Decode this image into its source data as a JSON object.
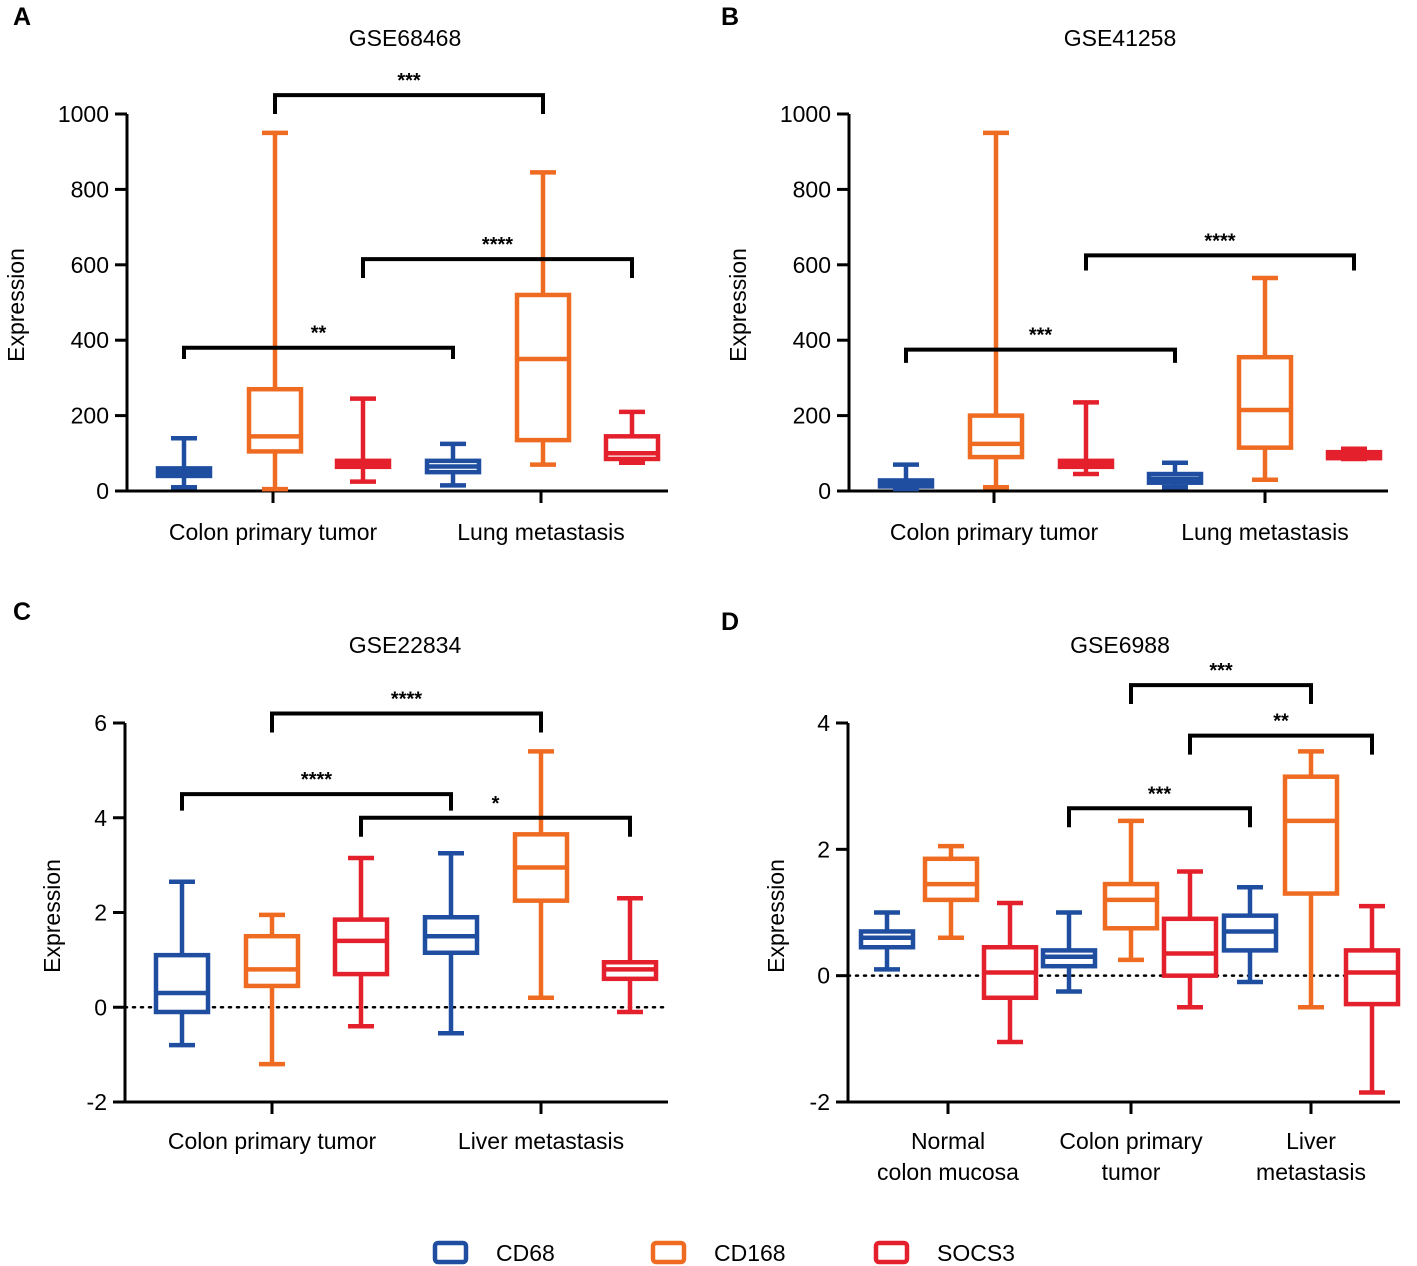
{
  "colors": {
    "CD68": "#1f4ea1",
    "CD168": "#ef6b22",
    "SOCS3": "#e3202c",
    "axis": "#000000"
  },
  "legend": [
    {
      "name": "CD68",
      "color": "#1f4ea1"
    },
    {
      "name": "CD168",
      "color": "#ef6b22"
    },
    {
      "name": "SOCS3",
      "color": "#e3202c"
    }
  ],
  "chart_data": [
    {
      "panel": "A",
      "type": "box",
      "title": "GSE68468",
      "ylabel": "Expression",
      "ylim": [
        0,
        1000
      ],
      "yticks": [
        0,
        200,
        400,
        600,
        800,
        1000
      ],
      "zero_line": false,
      "groups": [
        {
          "label": "Colon primary tumor",
          "boxes": [
            {
              "series": "CD68",
              "min": 10,
              "q1": 40,
              "median": 50,
              "q3": 60,
              "max": 140
            },
            {
              "series": "CD168",
              "min": 5,
              "q1": 105,
              "median": 145,
              "q3": 270,
              "max": 950
            },
            {
              "series": "SOCS3",
              "min": 25,
              "q1": 65,
              "median": 72,
              "q3": 80,
              "max": 245
            }
          ]
        },
        {
          "label": "Lung metastasis",
          "boxes": [
            {
              "series": "CD68",
              "min": 15,
              "q1": 50,
              "median": 65,
              "q3": 80,
              "max": 125
            },
            {
              "series": "CD168",
              "min": 70,
              "q1": 135,
              "median": 350,
              "q3": 520,
              "max": 845
            },
            {
              "series": "SOCS3",
              "min": 75,
              "q1": 85,
              "median": 100,
              "q3": 145,
              "max": 210
            }
          ]
        }
      ],
      "significance": [
        {
          "label": "**",
          "from": [
            0,
            0
          ],
          "to": [
            1,
            0
          ],
          "y": 380,
          "tip": 350
        },
        {
          "label": "***",
          "from": [
            0,
            1
          ],
          "to": [
            1,
            1
          ],
          "y": 1050,
          "tip": 1000
        },
        {
          "label": "****",
          "from": [
            0,
            2
          ],
          "to": [
            1,
            2
          ],
          "y": 615,
          "tip": 565
        }
      ]
    },
    {
      "panel": "B",
      "type": "box",
      "title": "GSE41258",
      "ylabel": "Expression",
      "ylim": [
        0,
        1000
      ],
      "yticks": [
        0,
        200,
        400,
        600,
        800,
        1000
      ],
      "zero_line": false,
      "groups": [
        {
          "label": "Colon primary tumor",
          "boxes": [
            {
              "series": "CD68",
              "min": 5,
              "q1": 15,
              "median": 22,
              "q3": 28,
              "max": 70
            },
            {
              "series": "CD168",
              "min": 10,
              "q1": 90,
              "median": 125,
              "q3": 200,
              "max": 950
            },
            {
              "series": "SOCS3",
              "min": 45,
              "q1": 70,
              "median": 75,
              "q3": 80,
              "max": 235
            }
          ]
        },
        {
          "label": "Lung metastasis",
          "boxes": [
            {
              "series": "CD68",
              "min": 10,
              "q1": 22,
              "median": 32,
              "q3": 45,
              "max": 75
            },
            {
              "series": "CD168",
              "min": 30,
              "q1": 115,
              "median": 215,
              "q3": 355,
              "max": 565
            },
            {
              "series": "SOCS3",
              "min": 85,
              "q1": 88,
              "median": 95,
              "q3": 103,
              "max": 112
            }
          ]
        }
      ],
      "significance": [
        {
          "label": "***",
          "from": [
            0,
            0
          ],
          "to": [
            1,
            0
          ],
          "y": 375,
          "tip": 340
        },
        {
          "label": "****",
          "from": [
            0,
            2
          ],
          "to": [
            1,
            2
          ],
          "y": 625,
          "tip": 585
        }
      ]
    },
    {
      "panel": "C",
      "type": "box",
      "title": "GSE22834",
      "ylabel": "Expression",
      "ylim": [
        -2,
        6
      ],
      "yticks": [
        -2,
        0,
        2,
        4,
        6
      ],
      "zero_line": true,
      "groups": [
        {
          "label": "Colon primary tumor",
          "boxes": [
            {
              "series": "CD68",
              "min": -0.8,
              "q1": -0.1,
              "median": 0.3,
              "q3": 1.1,
              "max": 2.65
            },
            {
              "series": "CD168",
              "min": -1.2,
              "q1": 0.45,
              "median": 0.8,
              "q3": 1.5,
              "max": 1.95
            },
            {
              "series": "SOCS3",
              "min": -0.4,
              "q1": 0.7,
              "median": 1.4,
              "q3": 1.85,
              "max": 3.15
            }
          ]
        },
        {
          "label": "Liver metastasis",
          "boxes": [
            {
              "series": "CD68",
              "min": -0.55,
              "q1": 1.15,
              "median": 1.5,
              "q3": 1.9,
              "max": 3.25
            },
            {
              "series": "CD168",
              "min": 0.2,
              "q1": 2.25,
              "median": 2.95,
              "q3": 3.65,
              "max": 5.4
            },
            {
              "series": "SOCS3",
              "min": -0.1,
              "q1": 0.6,
              "median": 0.8,
              "q3": 0.95,
              "max": 2.3
            }
          ]
        }
      ],
      "significance": [
        {
          "label": "****",
          "from": [
            0,
            0
          ],
          "to": [
            1,
            0
          ],
          "y": 4.5,
          "tip": 4.15
        },
        {
          "label": "****",
          "from": [
            0,
            1
          ],
          "to": [
            1,
            1
          ],
          "y": 6.2,
          "tip": 5.8
        },
        {
          "label": "*",
          "from": [
            0,
            2
          ],
          "to": [
            1,
            2
          ],
          "y": 4.0,
          "tip": 3.6
        }
      ]
    },
    {
      "panel": "D",
      "type": "box",
      "title": "GSE6988",
      "ylabel": "Expression",
      "ylim": [
        -2,
        4
      ],
      "yticks": [
        -2,
        0,
        2,
        4
      ],
      "zero_line": true,
      "groups": [
        {
          "label": "Normal\ncolon mucosa",
          "boxes": [
            {
              "series": "CD68",
              "min": 0.1,
              "q1": 0.45,
              "median": 0.6,
              "q3": 0.7,
              "max": 1.0
            },
            {
              "series": "CD168",
              "min": 0.6,
              "q1": 1.2,
              "median": 1.45,
              "q3": 1.85,
              "max": 2.05
            },
            {
              "series": "SOCS3",
              "min": -1.05,
              "q1": -0.35,
              "median": 0.05,
              "q3": 0.45,
              "max": 1.15
            }
          ]
        },
        {
          "label": "Colon primary\ntumor",
          "boxes": [
            {
              "series": "CD68",
              "min": -0.25,
              "q1": 0.15,
              "median": 0.3,
              "q3": 0.4,
              "max": 1.0
            },
            {
              "series": "CD168",
              "min": 0.25,
              "q1": 0.75,
              "median": 1.2,
              "q3": 1.45,
              "max": 2.45
            },
            {
              "series": "SOCS3",
              "min": -0.5,
              "q1": 0.0,
              "median": 0.35,
              "q3": 0.9,
              "max": 1.65
            }
          ]
        },
        {
          "label": "Liver\nmetastasis",
          "boxes": [
            {
              "series": "CD68",
              "min": -0.1,
              "q1": 0.4,
              "median": 0.7,
              "q3": 0.95,
              "max": 1.4
            },
            {
              "series": "CD168",
              "min": -0.5,
              "q1": 1.3,
              "median": 2.45,
              "q3": 3.15,
              "max": 3.55
            },
            {
              "series": "SOCS3",
              "min": -1.85,
              "q1": -0.45,
              "median": 0.05,
              "q3": 0.4,
              "max": 1.1
            }
          ]
        }
      ],
      "significance": [
        {
          "label": "***",
          "from": [
            1,
            0
          ],
          "to": [
            2,
            0
          ],
          "y": 2.65,
          "tip": 2.35
        },
        {
          "label": "***",
          "from": [
            1,
            1
          ],
          "to": [
            2,
            1
          ],
          "y": 4.6,
          "tip": 4.3
        },
        {
          "label": "**",
          "from": [
            1,
            2
          ],
          "to": [
            2,
            2
          ],
          "y": 3.8,
          "tip": 3.5
        }
      ]
    }
  ]
}
